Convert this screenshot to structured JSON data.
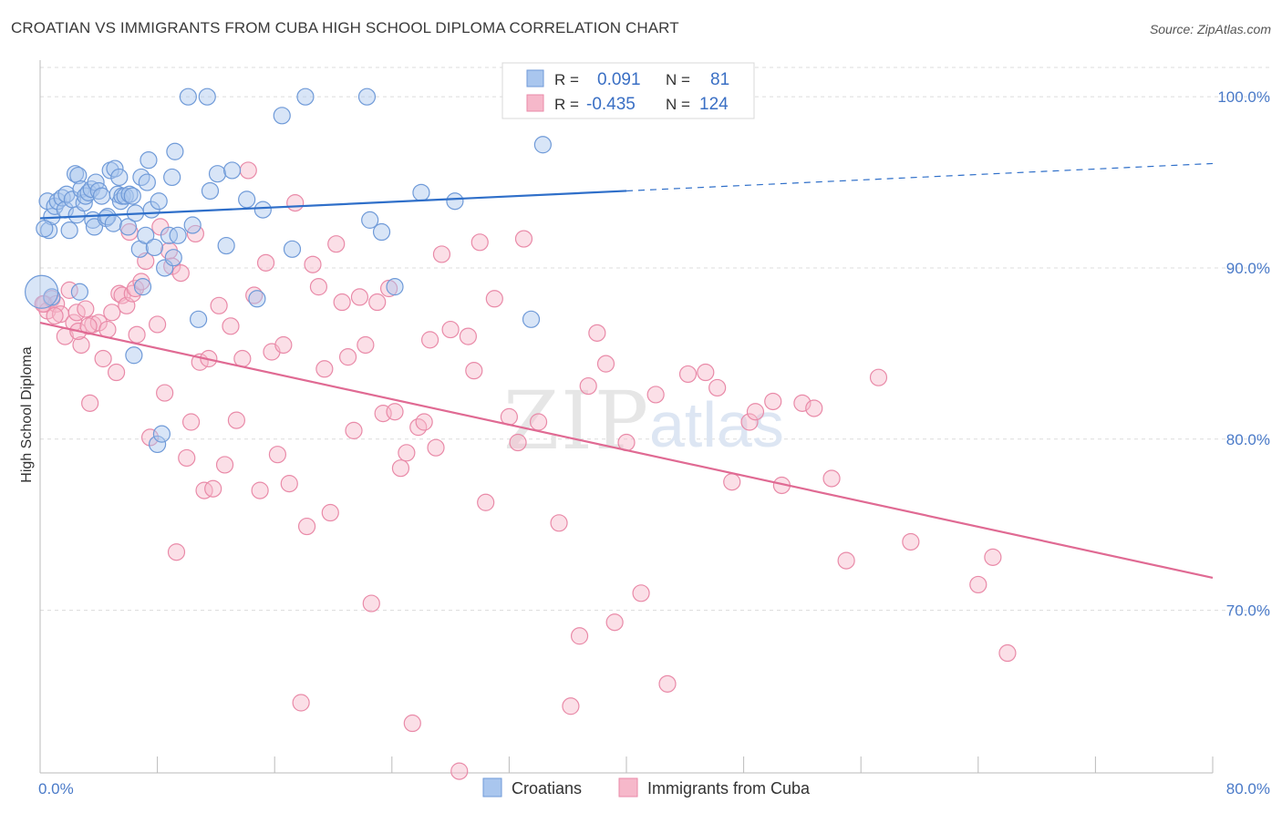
{
  "title": "CROATIAN VS IMMIGRANTS FROM CUBA HIGH SCHOOL DIPLOMA CORRELATION CHART",
  "source": "Source: ZipAtlas.com",
  "watermark": {
    "zip": "ZIP",
    "atlas": "atlas"
  },
  "colors": {
    "blue_fill": "#a9c6ee",
    "blue_stroke": "#6f9ad8",
    "blue_line": "#2f6fc9",
    "pink_fill": "#f6b8ca",
    "pink_stroke": "#e98aa8",
    "pink_line": "#e06a93",
    "grid": "#dcdcdc",
    "axis_text": "#4a7ac8"
  },
  "legend_top": {
    "rows": [
      {
        "r_label": "R =",
        "r_value": "0.091",
        "n_label": "N =",
        "n_value": "81",
        "series": "blue"
      },
      {
        "r_label": "R =",
        "r_value": "-0.435",
        "n_label": "N =",
        "n_value": "124",
        "series": "pink"
      }
    ]
  },
  "legend_bottom": [
    {
      "label": "Croatians",
      "series": "blue"
    },
    {
      "label": "Immigrants from Cuba",
      "series": "pink"
    }
  ],
  "chart_data": {
    "type": "scatter",
    "xlabel": "",
    "ylabel": "High School Diploma",
    "xlim": [
      0,
      80
    ],
    "ylim": [
      60.5,
      101.5
    ],
    "x_ticks_labels": [
      {
        "value": 0,
        "label": "0.0%"
      },
      {
        "value": 80,
        "label": "80.0%"
      }
    ],
    "x_minor_ticks": [
      0,
      8,
      16,
      24,
      32,
      40,
      48,
      56,
      64,
      72,
      80
    ],
    "y_ticks": [
      {
        "value": 100,
        "label": "100.0%"
      },
      {
        "value": 90,
        "label": "90.0%"
      },
      {
        "value": 80,
        "label": "80.0%"
      },
      {
        "value": 70,
        "label": "70.0%"
      }
    ],
    "grid": true,
    "series": [
      {
        "name": "Croatians",
        "color": "#a9c6ee",
        "trend": {
          "x0": 0,
          "y0": 92.9,
          "x1": 40,
          "y1": 94.5,
          "dashed_to_x": 80,
          "dashed_to_y": 96.1
        },
        "points": [
          [
            0.5,
            93.9
          ],
          [
            0.6,
            92.2
          ],
          [
            0.8,
            93.0
          ],
          [
            0.8,
            88.3
          ],
          [
            1.0,
            93.6
          ],
          [
            1.2,
            93.9
          ],
          [
            1.5,
            94.1
          ],
          [
            1.7,
            93.4
          ],
          [
            1.8,
            94.3
          ],
          [
            2.0,
            92.2
          ],
          [
            2.2,
            94.0
          ],
          [
            2.4,
            95.5
          ],
          [
            2.5,
            93.1
          ],
          [
            2.6,
            95.4
          ],
          [
            2.7,
            88.6
          ],
          [
            2.8,
            94.6
          ],
          [
            3.0,
            93.8
          ],
          [
            3.1,
            94.2
          ],
          [
            3.3,
            94.4
          ],
          [
            3.5,
            94.6
          ],
          [
            3.6,
            92.8
          ],
          [
            3.7,
            92.4
          ],
          [
            3.8,
            95.0
          ],
          [
            4.0,
            94.5
          ],
          [
            4.2,
            94.2
          ],
          [
            4.5,
            92.9
          ],
          [
            4.6,
            93.0
          ],
          [
            4.8,
            95.7
          ],
          [
            5.0,
            92.6
          ],
          [
            5.1,
            95.8
          ],
          [
            5.3,
            94.3
          ],
          [
            5.4,
            95.3
          ],
          [
            5.5,
            93.9
          ],
          [
            5.6,
            94.2
          ],
          [
            5.8,
            94.2
          ],
          [
            6.0,
            92.4
          ],
          [
            6.1,
            94.3
          ],
          [
            6.3,
            94.2
          ],
          [
            6.4,
            84.9
          ],
          [
            6.5,
            93.2
          ],
          [
            6.8,
            91.1
          ],
          [
            6.9,
            95.3
          ],
          [
            7.0,
            88.9
          ],
          [
            7.2,
            91.9
          ],
          [
            7.3,
            95.0
          ],
          [
            7.4,
            96.3
          ],
          [
            7.6,
            93.4
          ],
          [
            7.8,
            91.2
          ],
          [
            8.0,
            79.7
          ],
          [
            8.1,
            93.9
          ],
          [
            8.3,
            80.3
          ],
          [
            8.5,
            90.0
          ],
          [
            8.8,
            91.9
          ],
          [
            9.0,
            95.3
          ],
          [
            9.1,
            90.6
          ],
          [
            9.2,
            96.8
          ],
          [
            9.4,
            91.9
          ],
          [
            10.1,
            100.0
          ],
          [
            10.4,
            92.5
          ],
          [
            10.8,
            87.0
          ],
          [
            11.4,
            100.0
          ],
          [
            11.6,
            94.5
          ],
          [
            12.1,
            95.5
          ],
          [
            12.7,
            91.3
          ],
          [
            13.1,
            95.7
          ],
          [
            14.1,
            94.0
          ],
          [
            14.8,
            88.2
          ],
          [
            15.2,
            93.4
          ],
          [
            16.5,
            98.9
          ],
          [
            17.2,
            91.1
          ],
          [
            18.1,
            100.0
          ],
          [
            22.3,
            100.0
          ],
          [
            22.5,
            92.8
          ],
          [
            23.3,
            92.1
          ],
          [
            24.2,
            88.9
          ],
          [
            26.0,
            94.4
          ],
          [
            28.3,
            93.9
          ],
          [
            33.5,
            87.0
          ],
          [
            34.3,
            97.2
          ],
          [
            0.3,
            92.3
          ],
          [
            0.1,
            88.6
          ]
        ]
      },
      {
        "name": "Immigrants from Cuba",
        "color": "#f6b8ca",
        "trend": {
          "x0": 0,
          "y0": 86.8,
          "x1": 80,
          "y1": 71.9
        },
        "points": [
          [
            0.3,
            87.9
          ],
          [
            0.5,
            87.5
          ],
          [
            0.8,
            88.2
          ],
          [
            1.1,
            87.9
          ],
          [
            1.4,
            87.3
          ],
          [
            1.7,
            86.0
          ],
          [
            2.0,
            88.7
          ],
          [
            2.3,
            86.8
          ],
          [
            2.5,
            87.4
          ],
          [
            2.8,
            85.5
          ],
          [
            3.1,
            87.6
          ],
          [
            3.4,
            82.1
          ],
          [
            3.6,
            86.7
          ],
          [
            4.0,
            86.8
          ],
          [
            4.3,
            84.7
          ],
          [
            4.6,
            86.4
          ],
          [
            4.9,
            87.4
          ],
          [
            5.2,
            83.9
          ],
          [
            5.4,
            88.5
          ],
          [
            5.6,
            88.4
          ],
          [
            5.9,
            87.8
          ],
          [
            6.1,
            92.1
          ],
          [
            6.3,
            88.5
          ],
          [
            6.5,
            88.8
          ],
          [
            6.9,
            89.2
          ],
          [
            7.2,
            90.4
          ],
          [
            7.5,
            80.1
          ],
          [
            8.0,
            86.7
          ],
          [
            8.2,
            92.4
          ],
          [
            8.5,
            82.7
          ],
          [
            8.8,
            91.0
          ],
          [
            9.0,
            90.1
          ],
          [
            9.3,
            73.4
          ],
          [
            9.6,
            89.7
          ],
          [
            10.0,
            78.9
          ],
          [
            10.3,
            81.0
          ],
          [
            10.6,
            92.0
          ],
          [
            10.9,
            84.5
          ],
          [
            11.2,
            77.0
          ],
          [
            11.5,
            84.7
          ],
          [
            11.8,
            77.1
          ],
          [
            12.2,
            87.8
          ],
          [
            12.6,
            78.5
          ],
          [
            13.0,
            86.6
          ],
          [
            13.4,
            81.1
          ],
          [
            13.8,
            84.7
          ],
          [
            14.2,
            95.7
          ],
          [
            14.6,
            88.4
          ],
          [
            15.0,
            77.0
          ],
          [
            15.4,
            90.3
          ],
          [
            15.8,
            85.1
          ],
          [
            16.2,
            79.1
          ],
          [
            16.6,
            85.5
          ],
          [
            17.0,
            77.4
          ],
          [
            17.4,
            93.8
          ],
          [
            17.8,
            64.6
          ],
          [
            18.2,
            74.9
          ],
          [
            18.6,
            90.2
          ],
          [
            19.0,
            88.9
          ],
          [
            19.4,
            84.1
          ],
          [
            19.8,
            75.7
          ],
          [
            20.2,
            91.4
          ],
          [
            20.6,
            88.0
          ],
          [
            21.0,
            84.8
          ],
          [
            21.4,
            80.5
          ],
          [
            21.8,
            88.3
          ],
          [
            22.2,
            85.5
          ],
          [
            22.6,
            70.4
          ],
          [
            23.0,
            88.0
          ],
          [
            23.4,
            81.5
          ],
          [
            23.8,
            88.8
          ],
          [
            24.2,
            81.6
          ],
          [
            24.6,
            78.3
          ],
          [
            25.0,
            79.2
          ],
          [
            25.4,
            63.4
          ],
          [
            25.8,
            80.7
          ],
          [
            26.2,
            81.0
          ],
          [
            26.6,
            85.8
          ],
          [
            27.0,
            79.5
          ],
          [
            27.4,
            90.8
          ],
          [
            28.0,
            86.4
          ],
          [
            28.6,
            60.6
          ],
          [
            29.2,
            86.0
          ],
          [
            29.6,
            84.0
          ],
          [
            30.0,
            91.5
          ],
          [
            30.4,
            76.3
          ],
          [
            31.0,
            88.2
          ],
          [
            32.0,
            81.3
          ],
          [
            32.6,
            79.8
          ],
          [
            33.0,
            91.7
          ],
          [
            34.0,
            81.0
          ],
          [
            35.4,
            75.1
          ],
          [
            36.2,
            64.4
          ],
          [
            36.8,
            68.5
          ],
          [
            37.4,
            83.1
          ],
          [
            38.0,
            86.2
          ],
          [
            38.6,
            84.4
          ],
          [
            39.2,
            69.3
          ],
          [
            40.0,
            79.8
          ],
          [
            41.0,
            71.0
          ],
          [
            42.0,
            82.6
          ],
          [
            42.8,
            65.7
          ],
          [
            44.2,
            83.8
          ],
          [
            45.4,
            83.9
          ],
          [
            46.2,
            83.0
          ],
          [
            47.2,
            77.5
          ],
          [
            48.4,
            81.0
          ],
          [
            48.8,
            81.6
          ],
          [
            50.0,
            82.2
          ],
          [
            50.6,
            77.3
          ],
          [
            52.0,
            82.1
          ],
          [
            52.8,
            81.8
          ],
          [
            54.0,
            77.7
          ],
          [
            55.0,
            72.9
          ],
          [
            57.2,
            83.6
          ],
          [
            59.4,
            74.0
          ],
          [
            64.0,
            71.5
          ],
          [
            65.0,
            73.1
          ],
          [
            66.0,
            67.5
          ],
          [
            0.2,
            87.9
          ],
          [
            1.0,
            87.2
          ],
          [
            2.6,
            86.3
          ],
          [
            3.3,
            86.6
          ],
          [
            6.6,
            86.1
          ]
        ]
      }
    ]
  }
}
